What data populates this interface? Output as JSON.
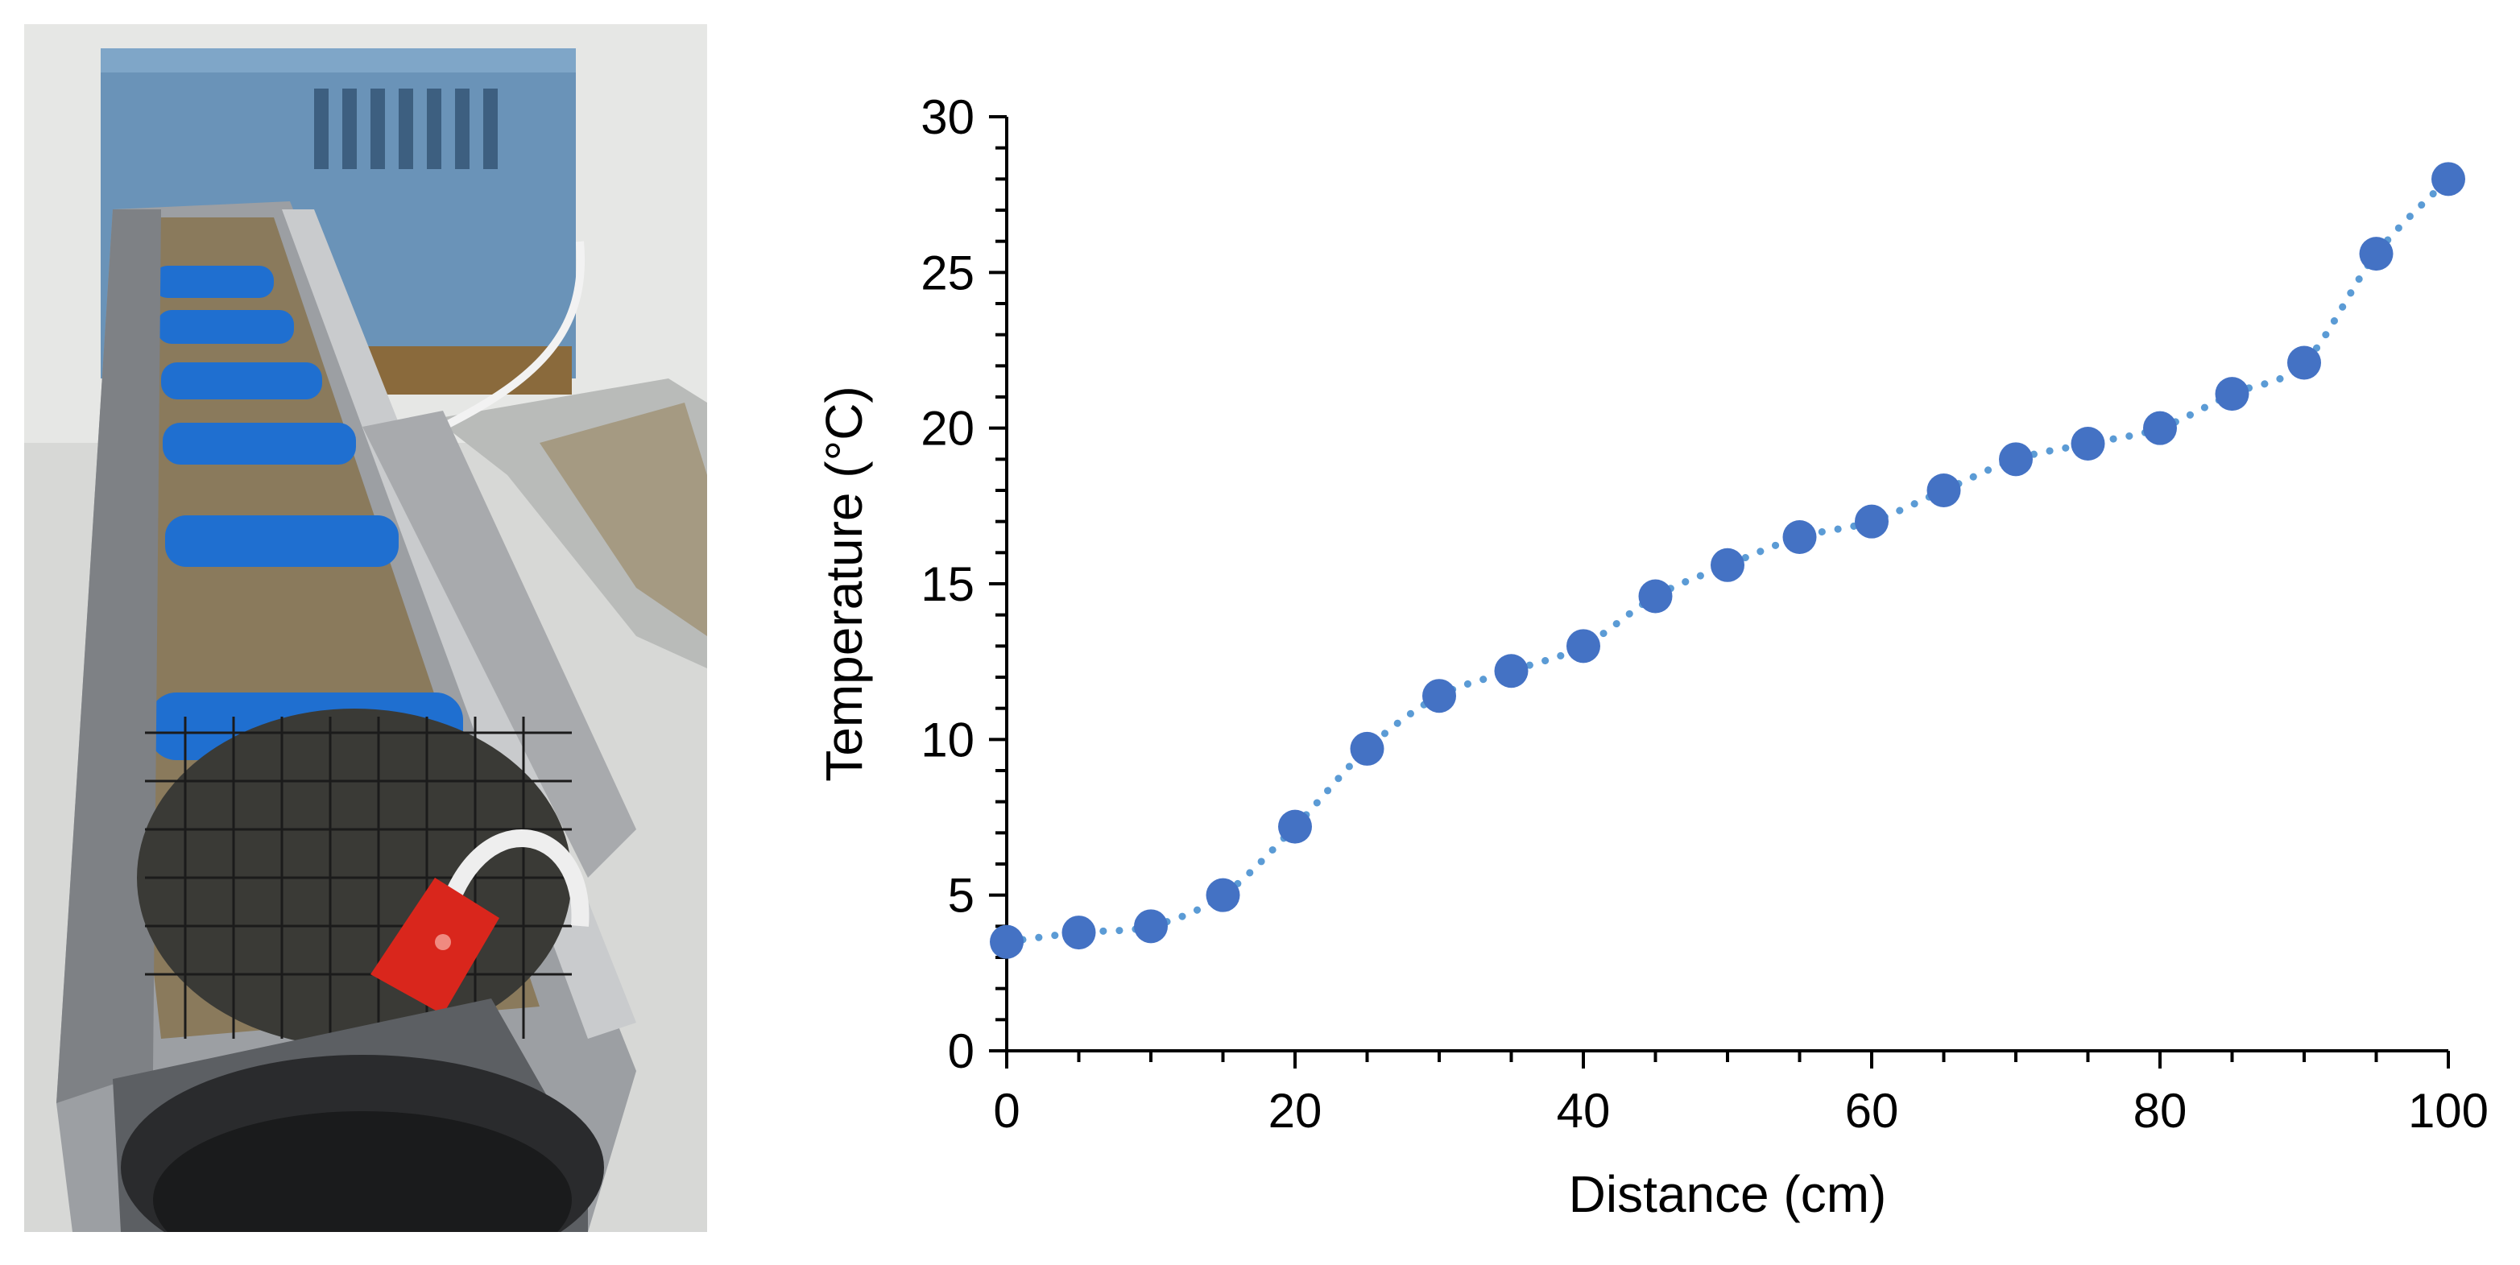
{
  "photo": {
    "subject": "thermal gradient trough apparatus",
    "colors": {
      "heater_box": "#6a93b8",
      "foam_bars": "#1f6fd0",
      "gravel": "#8a7a5c",
      "mesh": "#2a2a2a",
      "plug": "#d9261c",
      "pipe": "#5c5f63"
    }
  },
  "chart_data": {
    "type": "scatter",
    "style": "markers with dotted connecting line",
    "x": [
      0,
      5,
      10,
      15,
      20,
      25,
      30,
      35,
      40,
      45,
      50,
      55,
      60,
      65,
      70,
      75,
      80,
      85,
      90,
      95,
      100
    ],
    "y": [
      3.5,
      3.8,
      4.0,
      5.0,
      7.2,
      9.7,
      11.4,
      12.2,
      13.0,
      14.6,
      15.6,
      16.5,
      17.0,
      18.0,
      19.0,
      19.5,
      20.0,
      21.1,
      22.1,
      25.6,
      28.0
    ],
    "xlabel": "Distance (cm)",
    "ylabel": "Temperature (°C)",
    "xlim": [
      0,
      100
    ],
    "ylim": [
      0,
      30
    ],
    "xticks": [
      "0",
      "20",
      "40",
      "60",
      "80",
      "100"
    ],
    "yticks": [
      "0",
      "5",
      "10",
      "15",
      "20",
      "25",
      "30"
    ],
    "grid": false,
    "legend": "none",
    "marker_color": "#4472c4",
    "line_color": "#5b9bd5"
  }
}
